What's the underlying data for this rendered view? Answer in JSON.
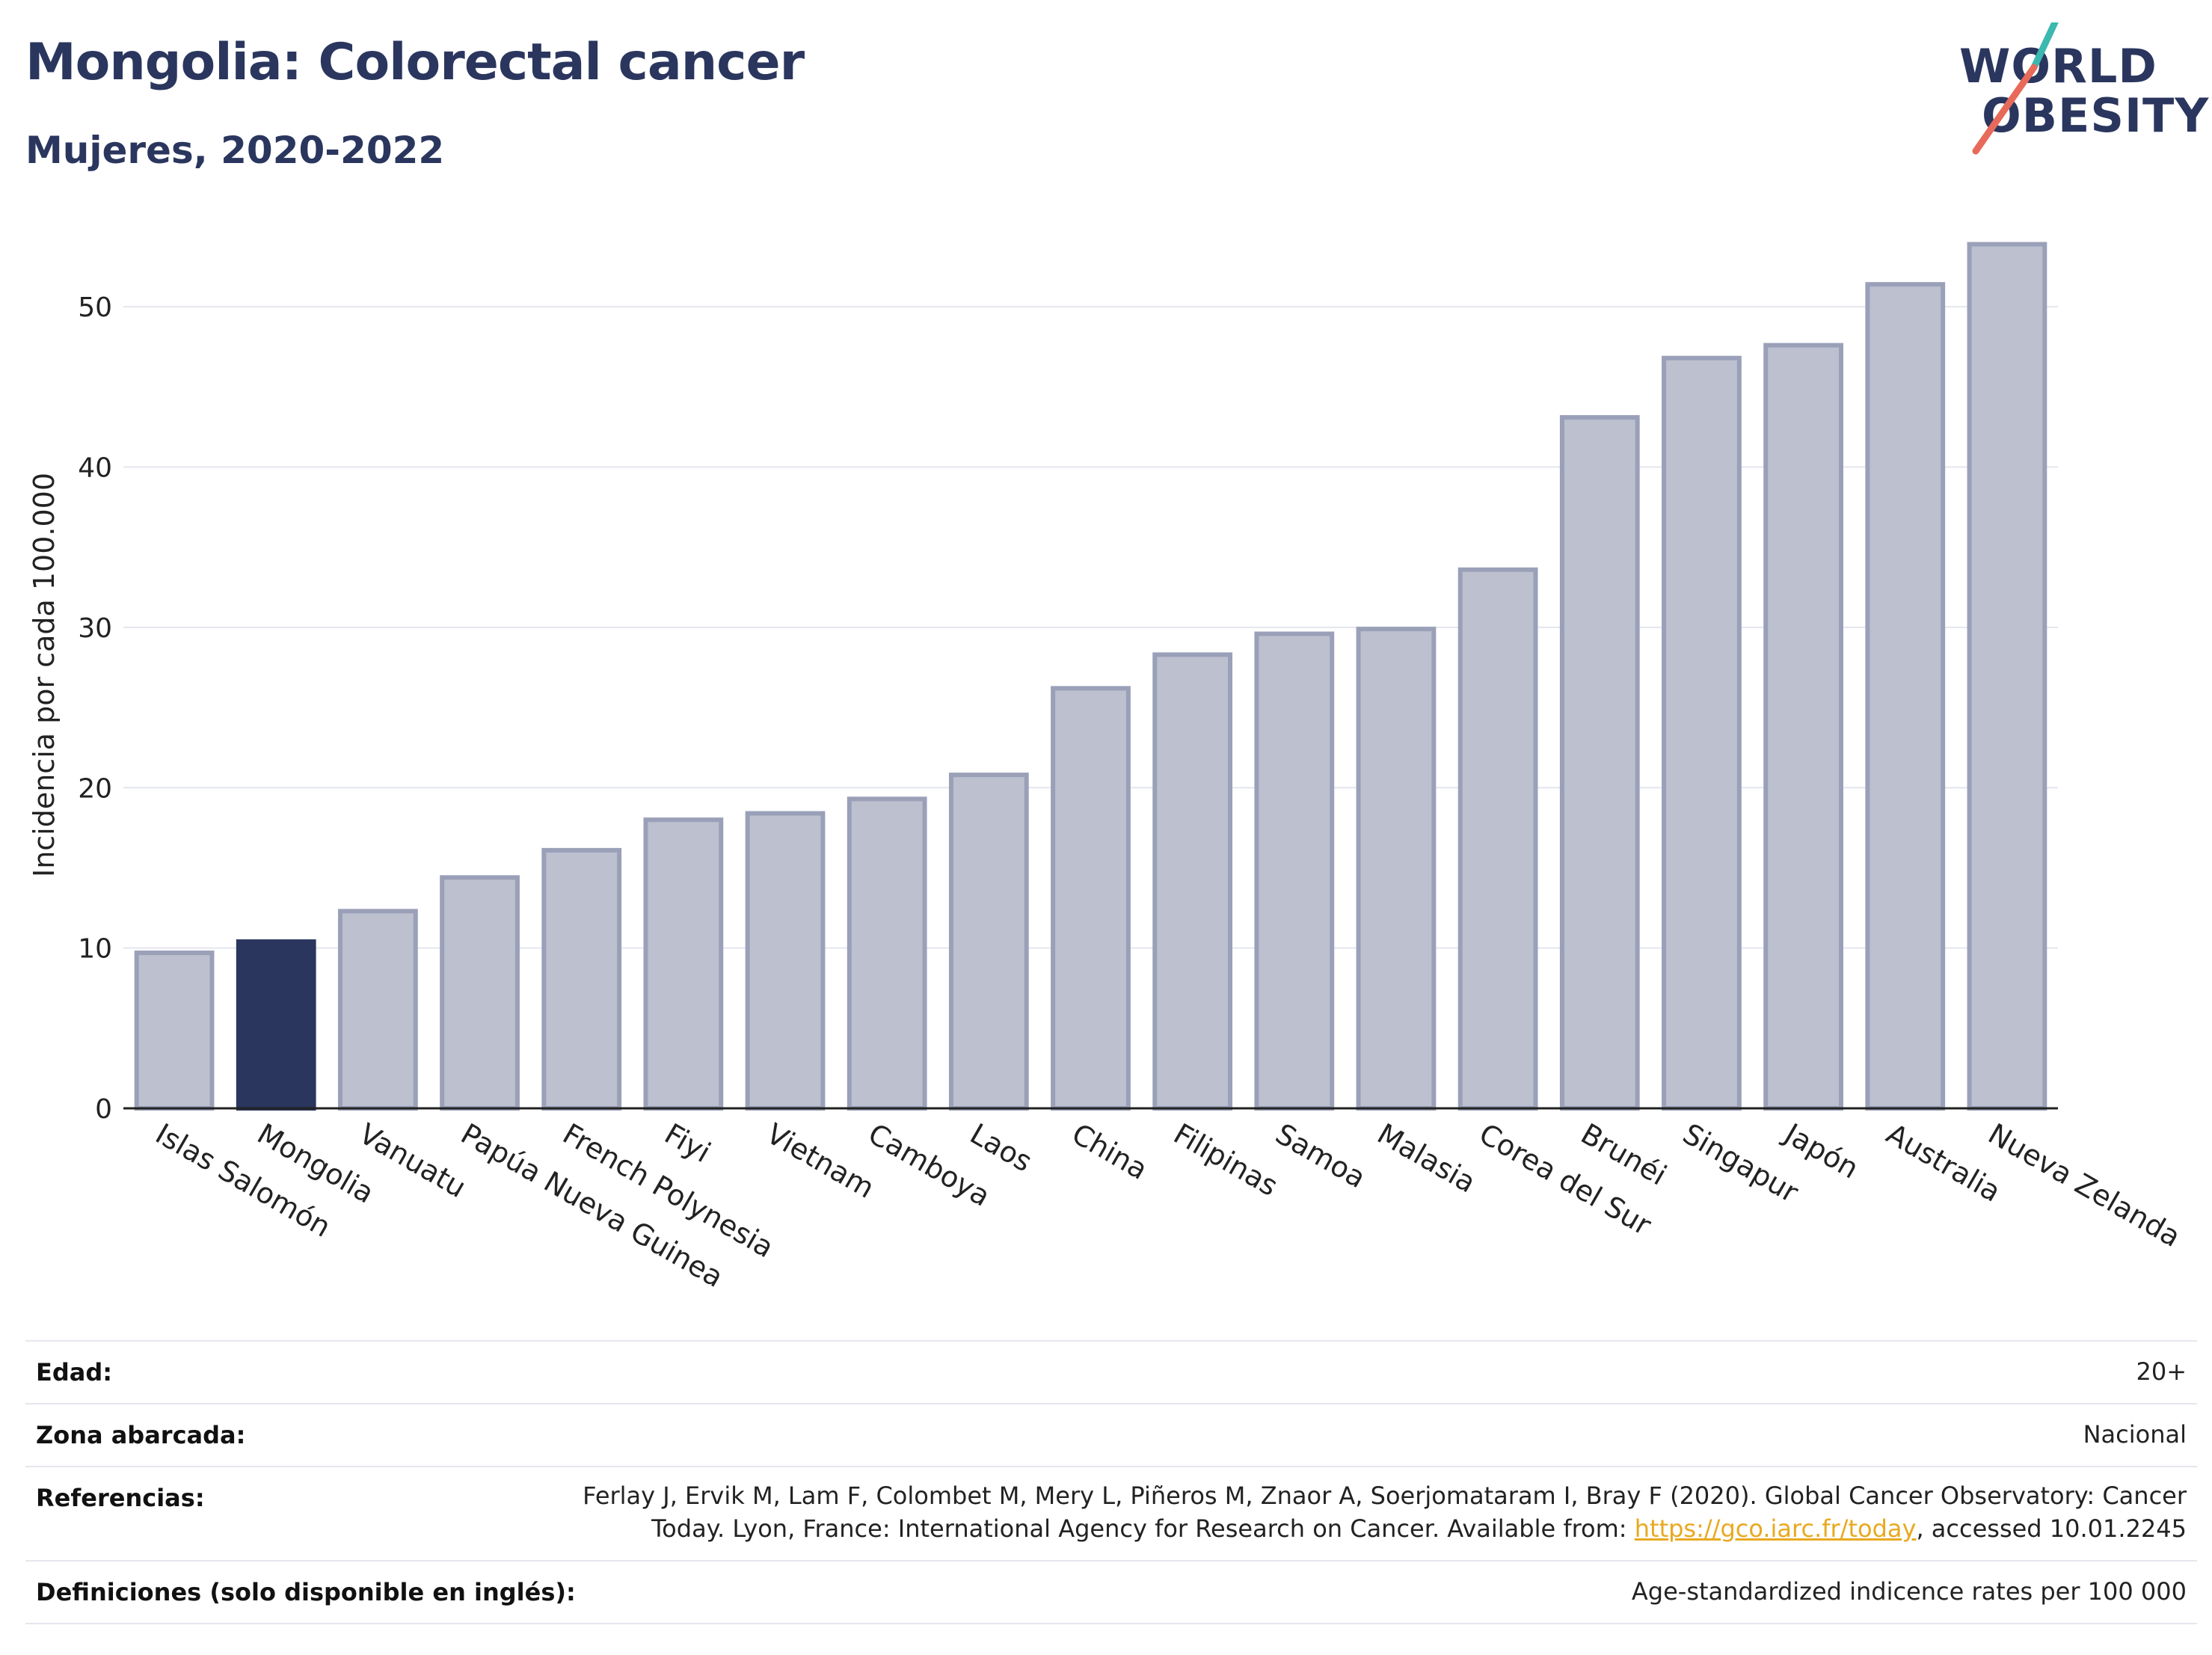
{
  "header": {
    "title": "Mongolia: Colorectal cancer",
    "subtitle": "Mujeres, 2020-2022"
  },
  "logo": {
    "line1": "WORLD",
    "line2": "OBESITY",
    "accent_color": "#e86a5a",
    "accent_color2": "#3bb8b0"
  },
  "chart_data": {
    "type": "bar",
    "ylabel": "Incidencia por cada 100.000",
    "xlabel": "",
    "ylim": [
      0,
      55
    ],
    "yticks": [
      0,
      10,
      20,
      30,
      40,
      50
    ],
    "grid": true,
    "highlight": "Mongolia",
    "highlight_color": "#2a365e",
    "bar_color": "#bcc0cf",
    "bar_edge_color": "#9aa0b8",
    "categories": [
      "Islas Salomón",
      "Mongolia",
      "Vanuatu",
      "Papúa Nueva Guinea",
      "French Polynesia",
      "Fiyi",
      "Vietnam",
      "Camboya",
      "Laos",
      "China",
      "Filipinas",
      "Samoa",
      "Malasia",
      "Corea del Sur",
      "Brunéi",
      "Singapur",
      "Japón",
      "Australia",
      "Nueva Zelanda"
    ],
    "values": [
      9.7,
      10.4,
      12.3,
      14.4,
      16.1,
      18.0,
      18.4,
      19.3,
      20.8,
      26.2,
      28.3,
      29.6,
      29.9,
      33.6,
      43.1,
      46.8,
      47.6,
      51.4,
      53.9
    ]
  },
  "footer": {
    "rows": [
      {
        "label": "Edad:",
        "value": "20+"
      },
      {
        "label": "Zona abarcada:",
        "value": "Nacional"
      },
      {
        "label": "Referencias:",
        "value_line1": "Ferlay J, Ervik M, Lam F, Colombet M, Mery L, Piñeros M, Znaor A, Soerjomataram I, Bray F (2020). Global Cancer Observatory: Cancer",
        "value_line2_pre": "Today. Lyon, France: International Agency for Research on Cancer. Available from: ",
        "value_link": "https://gco.iarc.fr/today",
        "value_line2_post": ", accessed 10.01.2245"
      },
      {
        "label": "Definiciones (solo disponible en inglés):",
        "value": "Age-standardized indicence rates per 100 000"
      }
    ]
  }
}
